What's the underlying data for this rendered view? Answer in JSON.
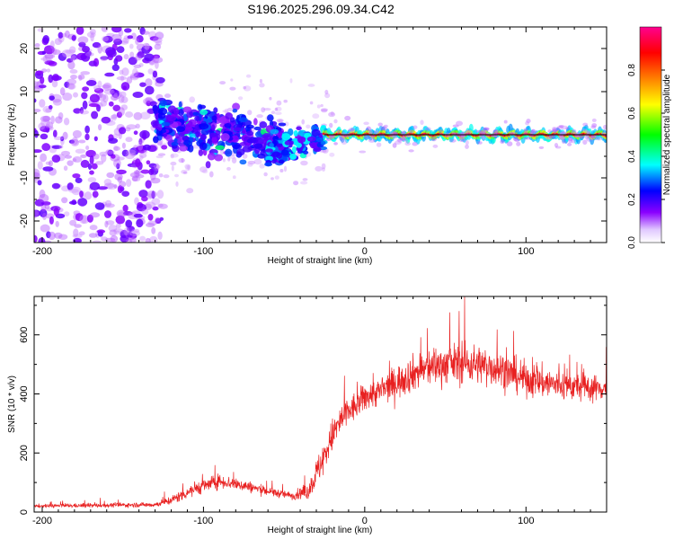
{
  "figure_title": "S196.2025.296.09.34.C42",
  "chart_data": [
    {
      "type": "heatmap",
      "name": "spectrogram",
      "xlabel": "Height of straight line (km)",
      "ylabel": "Frequency (Hz)",
      "xlim": [
        -205,
        150
      ],
      "ylim": [
        -25,
        25
      ],
      "xticks": [
        -200,
        -100,
        0,
        100
      ],
      "yticks": [
        -20,
        -10,
        0,
        10,
        20
      ],
      "carrier_frequency_hz": 0,
      "colorbar": {
        "label": "Normalized spectral amplitude",
        "range": [
          0,
          1
        ],
        "ticks": [
          "0.0",
          "0.2",
          "0.4",
          "0.6",
          "0.8"
        ],
        "colors": [
          "#ffffff",
          "#8a00ff",
          "#0000ff",
          "#00ffff",
          "#00ff00",
          "#ffff00",
          "#ff8000",
          "#ff0000",
          "#ff0090"
        ]
      },
      "regions": [
        {
          "x_range": [
            -205,
            -130
          ],
          "freq_spread_hz": 25,
          "amplitude": "0.05-0.2",
          "description_value": "diffuse"
        },
        {
          "x_range": [
            -130,
            -60
          ],
          "freq_spread_hz": 10,
          "amplitude": "0.1-0.35"
        },
        {
          "x_range": [
            -60,
            -25
          ],
          "freq_center_hz": -4,
          "amplitude": "0.2-0.4"
        },
        {
          "x_range": [
            -25,
            150
          ],
          "freq_center_hz": 0,
          "amplitude": "0.8-1.0"
        }
      ]
    },
    {
      "type": "line",
      "name": "snr",
      "xlabel": "Height of straight line (km)",
      "ylabel": "SNR (10 * v/v)",
      "xlim": [
        -205,
        150
      ],
      "ylim": [
        0,
        730
      ],
      "xticks": [
        -200,
        -100,
        0,
        100
      ],
      "yticks": [
        0,
        200,
        400,
        600
      ],
      "color": "#e82020",
      "envelope_x": [
        -205,
        -130,
        -120,
        -105,
        -90,
        -75,
        -60,
        -45,
        -35,
        -30,
        -25,
        -20,
        -15,
        -10,
        -5,
        0,
        10,
        20,
        30,
        40,
        50,
        60,
        70,
        80,
        90,
        100,
        110,
        120,
        130,
        140,
        150
      ],
      "envelope_y": [
        20,
        25,
        40,
        80,
        105,
        90,
        70,
        55,
        70,
        130,
        190,
        260,
        310,
        340,
        360,
        390,
        410,
        440,
        470,
        490,
        500,
        505,
        500,
        490,
        470,
        450,
        440,
        430,
        425,
        420,
        420
      ],
      "noise_amplitude": [
        8,
        10,
        20,
        30,
        30,
        25,
        20,
        15,
        35,
        60,
        70,
        70,
        70,
        65,
        60,
        60,
        60,
        70,
        75,
        80,
        80,
        85,
        80,
        80,
        75,
        70,
        70,
        65,
        60,
        55,
        55
      ],
      "peak_value": 730,
      "peak_x": 62
    }
  ]
}
